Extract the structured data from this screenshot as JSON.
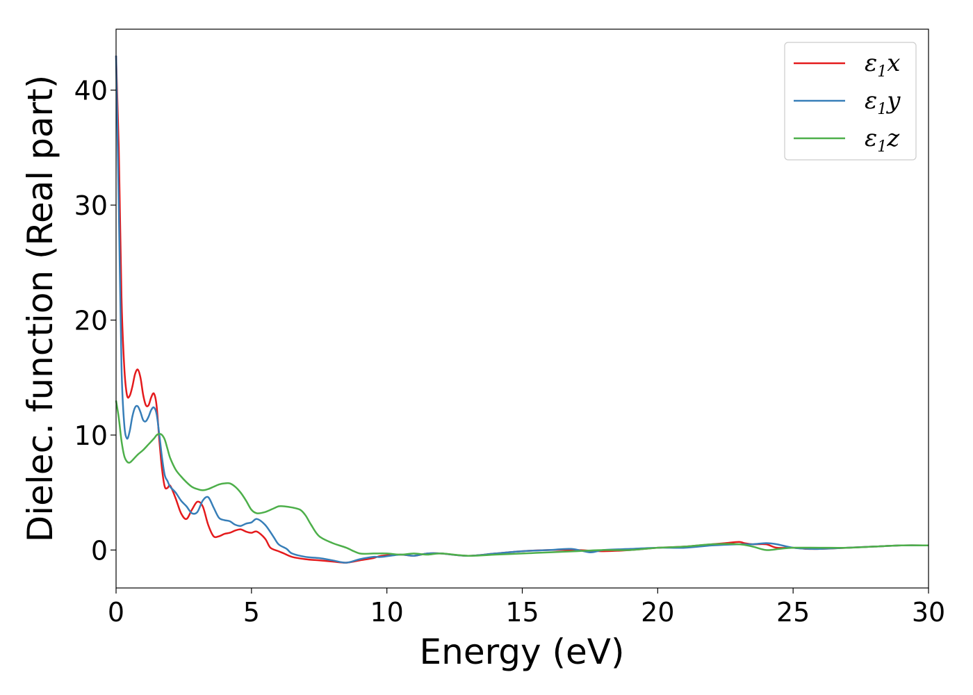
{
  "chart_data": {
    "type": "line",
    "title": "",
    "xlabel": "Energy (eV)",
    "ylabel": "Dielec. function (Real part)",
    "xlim": [
      0,
      30
    ],
    "ylim": [
      -3.3,
      45.3
    ],
    "xticks": [
      0,
      5,
      10,
      15,
      20,
      25,
      30
    ],
    "yticks": [
      0,
      10,
      20,
      30,
      40
    ],
    "grid": false,
    "legend_position": "top-right",
    "colors": {
      "x": "#e41a1c",
      "y": "#377eb8",
      "z": "#4daf4a"
    },
    "series": [
      {
        "key": "x",
        "name": "ε₁x",
        "legend_main": "ε",
        "legend_sub": "1",
        "legend_tail": "x",
        "x": [
          0.0,
          0.1,
          0.2,
          0.3,
          0.4,
          0.5,
          0.6,
          0.7,
          0.8,
          0.9,
          1.0,
          1.1,
          1.2,
          1.3,
          1.4,
          1.5,
          1.6,
          1.7,
          1.8,
          1.9,
          2.0,
          2.2,
          2.4,
          2.6,
          2.8,
          3.0,
          3.2,
          3.4,
          3.6,
          3.8,
          4.0,
          4.2,
          4.4,
          4.6,
          4.8,
          5.0,
          5.2,
          5.5,
          5.7,
          6.0,
          6.2,
          6.5,
          7.0,
          7.5,
          8.0,
          8.5,
          9.0,
          9.5,
          9.8,
          10.5,
          11.0,
          11.5,
          12.0,
          13.0,
          14.0,
          15.0,
          16.0,
          17.0,
          18.0,
          19.0,
          20.0,
          21.0,
          22.0,
          22.5,
          23.0,
          23.2,
          23.5,
          24.0,
          24.4,
          25.0,
          25.5,
          26.0,
          27.0,
          28.0,
          29.0,
          30.0
        ],
        "y": [
          43.0,
          35.0,
          22.0,
          16.0,
          13.5,
          13.4,
          14.2,
          15.3,
          15.7,
          15.0,
          13.5,
          12.6,
          12.6,
          13.3,
          13.6,
          12.5,
          9.5,
          7.0,
          5.5,
          5.4,
          5.6,
          4.5,
          3.2,
          2.7,
          3.5,
          4.2,
          3.8,
          2.2,
          1.2,
          1.2,
          1.4,
          1.5,
          1.7,
          1.8,
          1.6,
          1.5,
          1.6,
          1.0,
          0.2,
          -0.1,
          -0.3,
          -0.6,
          -0.8,
          -0.9,
          -1.0,
          -1.1,
          -0.9,
          -0.7,
          -0.5,
          -0.4,
          -0.5,
          -0.3,
          -0.3,
          -0.5,
          -0.3,
          -0.1,
          0.0,
          0.0,
          -0.1,
          0.0,
          0.2,
          0.3,
          0.5,
          0.6,
          0.7,
          0.6,
          0.5,
          0.5,
          0.2,
          0.2,
          0.1,
          0.1,
          0.2,
          0.3,
          0.4,
          0.4
        ]
      },
      {
        "key": "y",
        "name": "ε₁y",
        "legend_main": "ε",
        "legend_sub": "1",
        "legend_tail": "y",
        "x": [
          0.0,
          0.1,
          0.2,
          0.3,
          0.4,
          0.5,
          0.6,
          0.7,
          0.8,
          0.9,
          1.0,
          1.1,
          1.2,
          1.3,
          1.4,
          1.5,
          1.6,
          1.7,
          1.8,
          1.9,
          2.0,
          2.2,
          2.4,
          2.6,
          2.8,
          3.0,
          3.2,
          3.4,
          3.6,
          3.8,
          4.0,
          4.2,
          4.4,
          4.6,
          4.8,
          5.0,
          5.2,
          5.5,
          5.8,
          6.0,
          6.3,
          6.5,
          7.0,
          7.5,
          8.0,
          8.5,
          9.0,
          9.5,
          9.8,
          10.5,
          11.0,
          11.5,
          12.0,
          13.0,
          14.0,
          15.0,
          16.0,
          16.8,
          17.5,
          18.0,
          19.0,
          20.0,
          21.0,
          22.0,
          23.0,
          23.5,
          24.0,
          24.4,
          25.0,
          25.7,
          26.0,
          27.0,
          28.0,
          29.0,
          30.0
        ],
        "y": [
          43.0,
          30.0,
          16.0,
          11.0,
          9.7,
          10.3,
          11.6,
          12.4,
          12.5,
          12.0,
          11.3,
          11.2,
          11.6,
          12.2,
          12.4,
          11.8,
          10.0,
          8.0,
          6.5,
          6.0,
          5.5,
          5.0,
          4.3,
          3.8,
          3.2,
          3.3,
          4.3,
          4.6,
          3.7,
          2.8,
          2.6,
          2.5,
          2.2,
          2.1,
          2.3,
          2.4,
          2.7,
          2.2,
          1.2,
          0.5,
          0.1,
          -0.3,
          -0.6,
          -0.7,
          -0.9,
          -1.1,
          -0.8,
          -0.6,
          -0.6,
          -0.4,
          -0.5,
          -0.3,
          -0.3,
          -0.5,
          -0.3,
          -0.1,
          0.0,
          0.1,
          -0.2,
          0.0,
          0.1,
          0.2,
          0.2,
          0.4,
          0.5,
          0.5,
          0.6,
          0.5,
          0.2,
          0.1,
          0.1,
          0.2,
          0.3,
          0.4,
          0.4
        ]
      },
      {
        "key": "z",
        "name": "ε₁z",
        "legend_main": "ε",
        "legend_sub": "1",
        "legend_tail": "z",
        "x": [
          0.0,
          0.1,
          0.2,
          0.3,
          0.4,
          0.5,
          0.6,
          0.8,
          1.0,
          1.2,
          1.4,
          1.5,
          1.6,
          1.7,
          1.8,
          1.9,
          2.0,
          2.2,
          2.4,
          2.6,
          2.8,
          3.0,
          3.2,
          3.4,
          3.6,
          3.8,
          4.0,
          4.2,
          4.4,
          4.6,
          4.8,
          5.0,
          5.2,
          5.5,
          5.8,
          6.0,
          6.2,
          6.5,
          6.8,
          7.0,
          7.2,
          7.5,
          8.0,
          8.5,
          9.0,
          9.5,
          10.0,
          10.5,
          11.0,
          11.5,
          12.0,
          13.0,
          14.0,
          15.0,
          16.0,
          17.0,
          18.0,
          19.0,
          20.0,
          21.0,
          22.0,
          23.0,
          23.5,
          24.0,
          24.5,
          25.0,
          26.0,
          27.0,
          28.0,
          29.0,
          30.0
        ],
        "y": [
          13.0,
          11.5,
          9.5,
          8.2,
          7.7,
          7.6,
          7.8,
          8.3,
          8.7,
          9.2,
          9.7,
          10.0,
          10.1,
          10.0,
          9.6,
          8.8,
          8.0,
          7.0,
          6.4,
          5.9,
          5.5,
          5.3,
          5.2,
          5.3,
          5.5,
          5.7,
          5.8,
          5.8,
          5.5,
          5.0,
          4.3,
          3.5,
          3.2,
          3.3,
          3.6,
          3.8,
          3.8,
          3.7,
          3.5,
          3.0,
          2.2,
          1.2,
          0.6,
          0.2,
          -0.3,
          -0.3,
          -0.3,
          -0.4,
          -0.3,
          -0.4,
          -0.3,
          -0.5,
          -0.4,
          -0.3,
          -0.2,
          -0.1,
          0.0,
          0.0,
          0.2,
          0.3,
          0.5,
          0.5,
          0.3,
          0.0,
          0.1,
          0.2,
          0.2,
          0.2,
          0.3,
          0.4,
          0.4
        ]
      }
    ]
  }
}
